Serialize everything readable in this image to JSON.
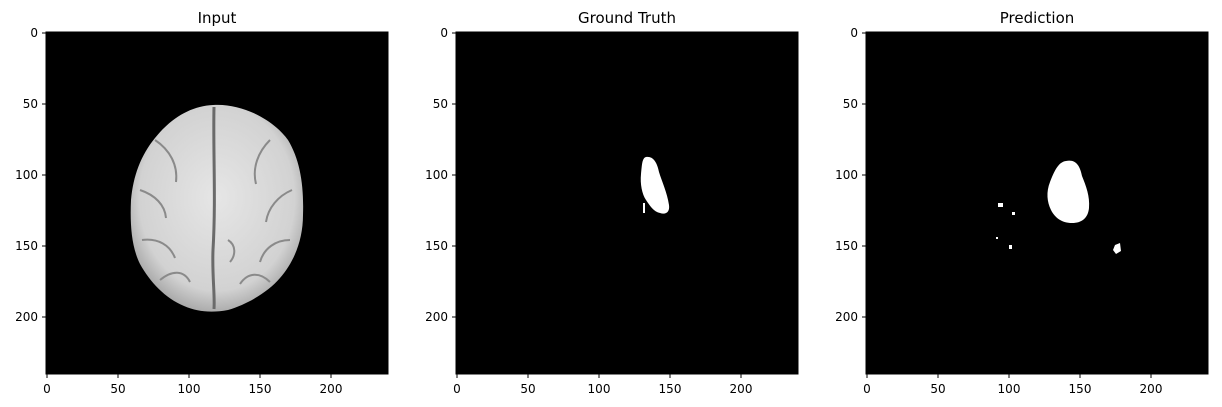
{
  "figure": {
    "panels": [
      {
        "title": "Input",
        "content": "brain MRI axial slice (grayscale)",
        "x_ticks": [
          "0",
          "50",
          "100",
          "150",
          "200"
        ],
        "y_ticks": [
          "0",
          "50",
          "100",
          "150",
          "200"
        ]
      },
      {
        "title": "Ground Truth",
        "content": "binary segmentation mask",
        "x_ticks": [
          "0",
          "50",
          "100",
          "150",
          "200"
        ],
        "y_ticks": [
          "0",
          "50",
          "100",
          "150",
          "200"
        ]
      },
      {
        "title": "Prediction",
        "content": "binary predicted mask",
        "x_ticks": [
          "0",
          "50",
          "100",
          "150",
          "200"
        ],
        "y_ticks": [
          "0",
          "50",
          "100",
          "150",
          "200"
        ]
      }
    ],
    "colors": {
      "background": "#000000",
      "mask": "#ffffff"
    }
  }
}
